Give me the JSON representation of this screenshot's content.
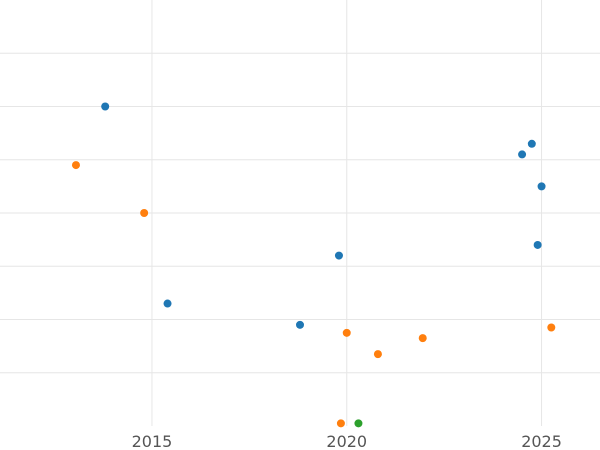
{
  "chart_data": {
    "type": "scatter",
    "title": "",
    "xlabel": "",
    "ylabel": "",
    "x_ticks": [
      "2015",
      "2020",
      "2025"
    ],
    "x_tick_values": [
      2015,
      2020,
      2025
    ],
    "xlim": [
      2011.1,
      2026.5
    ],
    "ylim": [
      0,
      8
    ],
    "y_grid_values": [
      1,
      2,
      3,
      4,
      5,
      6,
      7
    ],
    "grid": true,
    "legend": "none",
    "series": [
      {
        "color": "#1f77b4",
        "points": [
          {
            "x": 2013.8,
            "y": 6.0
          },
          {
            "x": 2015.4,
            "y": 2.3
          },
          {
            "x": 2018.8,
            "y": 1.9
          },
          {
            "x": 2019.8,
            "y": 3.2
          },
          {
            "x": 2024.5,
            "y": 5.1
          },
          {
            "x": 2024.75,
            "y": 5.3
          },
          {
            "x": 2025.0,
            "y": 4.5
          },
          {
            "x": 2024.9,
            "y": 3.4
          }
        ]
      },
      {
        "color": "#ff7f0e",
        "points": [
          {
            "x": 2013.05,
            "y": 4.9
          },
          {
            "x": 2014.8,
            "y": 4.0
          },
          {
            "x": 2019.85,
            "y": 0.05
          },
          {
            "x": 2020.0,
            "y": 1.75
          },
          {
            "x": 2020.8,
            "y": 1.35
          },
          {
            "x": 2021.95,
            "y": 1.65
          },
          {
            "x": 2025.25,
            "y": 1.85
          }
        ]
      },
      {
        "color": "#2ca02c",
        "points": [
          {
            "x": 2020.3,
            "y": 0.05
          }
        ]
      }
    ]
  }
}
